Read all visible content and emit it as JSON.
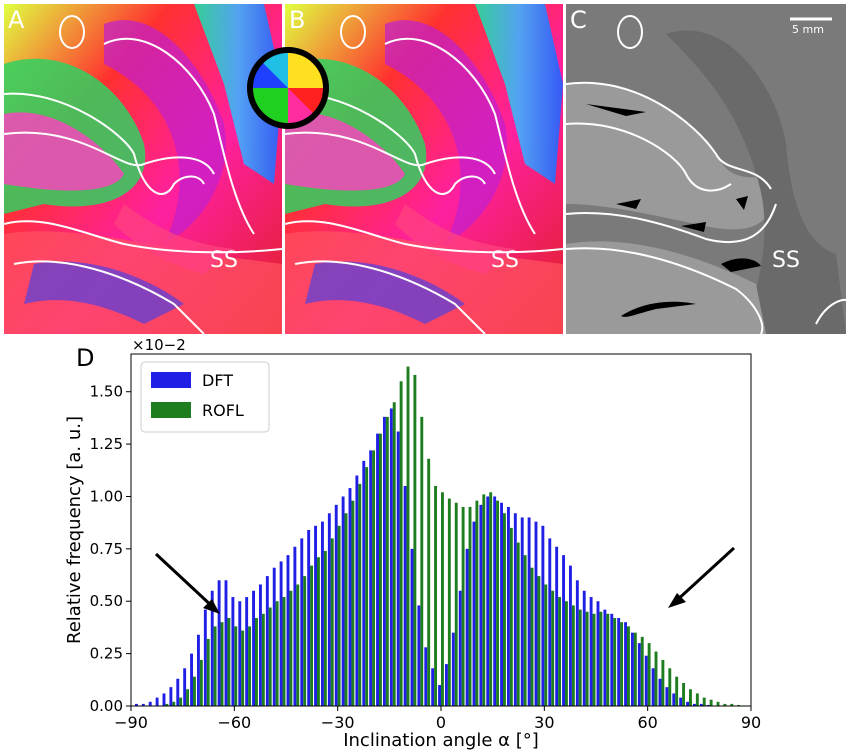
{
  "panels": {
    "a": {
      "letter": "A",
      "ss": "SS"
    },
    "b": {
      "letter": "B",
      "ss": "SS"
    },
    "c": {
      "letter": "C",
      "ss": "SS",
      "scale": "5 mm"
    }
  },
  "colors": {
    "dft": "#1f1fe6",
    "rofl": "#1e7d1e",
    "contour": "#ffffff",
    "arrow": "#000000"
  },
  "chart_data": {
    "type": "bar",
    "panel_letter": "D",
    "xlabel": "Inclination angle α [°]",
    "ylabel": "Relative frequency [a. u.]",
    "exponent": "×10−2",
    "xlim": [
      -90,
      90
    ],
    "ylim": [
      0,
      1.68
    ],
    "xticks": [
      "−90",
      "−60",
      "−30",
      "0",
      "30",
      "60",
      "90"
    ],
    "yticks": [
      "0.00",
      "0.25",
      "0.50",
      "0.75",
      "1.00",
      "1.25",
      "1.50"
    ],
    "legend_position": "top-left",
    "x": [
      -88,
      -86,
      -84,
      -82,
      -80,
      -78,
      -76,
      -74,
      -72,
      -70,
      -68,
      -66,
      -64,
      -62,
      -60,
      -58,
      -56,
      -54,
      -52,
      -50,
      -48,
      -46,
      -44,
      -42,
      -40,
      -38,
      -36,
      -34,
      -32,
      -30,
      -28,
      -26,
      -24,
      -22,
      -20,
      -18,
      -16,
      -14,
      -12,
      -10,
      -8,
      -6,
      -4,
      -2,
      0,
      2,
      4,
      6,
      8,
      10,
      12,
      14,
      16,
      18,
      20,
      22,
      24,
      26,
      28,
      30,
      32,
      34,
      36,
      38,
      40,
      42,
      44,
      46,
      48,
      50,
      52,
      54,
      56,
      58,
      60,
      62,
      64,
      66,
      68,
      70,
      72,
      74,
      76,
      78,
      80,
      82,
      84,
      86,
      88
    ],
    "series": [
      {
        "name": "DFT",
        "values": [
          0.01,
          0.01,
          0.02,
          0.04,
          0.06,
          0.09,
          0.13,
          0.18,
          0.25,
          0.34,
          0.46,
          0.55,
          0.6,
          0.6,
          0.52,
          0.5,
          0.52,
          0.55,
          0.58,
          0.62,
          0.66,
          0.69,
          0.72,
          0.76,
          0.8,
          0.84,
          0.86,
          0.88,
          0.92,
          0.96,
          1.0,
          1.04,
          1.1,
          1.17,
          1.22,
          1.3,
          1.38,
          1.42,
          1.31,
          1.05,
          0.75,
          0.48,
          0.28,
          0.18,
          0.1,
          0.2,
          0.35,
          0.55,
          0.75,
          0.88,
          0.96,
          1.0,
          1.0,
          0.97,
          0.95,
          0.92,
          0.9,
          0.9,
          0.88,
          0.86,
          0.8,
          0.76,
          0.72,
          0.67,
          0.6,
          0.55,
          0.52,
          0.5,
          0.46,
          0.44,
          0.42,
          0.4,
          0.35,
          0.3,
          0.24,
          0.18,
          0.13,
          0.09,
          0.06,
          0.04,
          0.02,
          0.01,
          0.01,
          0.005,
          0.002,
          0.001,
          0.001,
          0.0,
          0.0
        ]
      },
      {
        "name": "ROFL",
        "values": [
          0.0,
          0.0,
          0.0,
          0.0,
          0.01,
          0.02,
          0.04,
          0.08,
          0.14,
          0.22,
          0.32,
          0.38,
          0.4,
          0.42,
          0.38,
          0.36,
          0.38,
          0.42,
          0.44,
          0.47,
          0.5,
          0.52,
          0.55,
          0.58,
          0.62,
          0.67,
          0.71,
          0.74,
          0.8,
          0.86,
          0.92,
          0.98,
          1.06,
          1.14,
          1.22,
          1.3,
          1.38,
          1.45,
          1.55,
          1.62,
          1.58,
          1.38,
          1.18,
          1.05,
          1.02,
          0.99,
          0.97,
          0.95,
          0.95,
          0.98,
          1.01,
          1.02,
          0.98,
          0.92,
          0.85,
          0.78,
          0.72,
          0.66,
          0.62,
          0.58,
          0.55,
          0.52,
          0.5,
          0.48,
          0.46,
          0.45,
          0.44,
          0.45,
          0.44,
          0.42,
          0.4,
          0.38,
          0.35,
          0.33,
          0.3,
          0.26,
          0.22,
          0.18,
          0.14,
          0.11,
          0.08,
          0.06,
          0.04,
          0.03,
          0.02,
          0.01,
          0.01,
          0.005,
          0.0
        ]
      }
    ]
  }
}
